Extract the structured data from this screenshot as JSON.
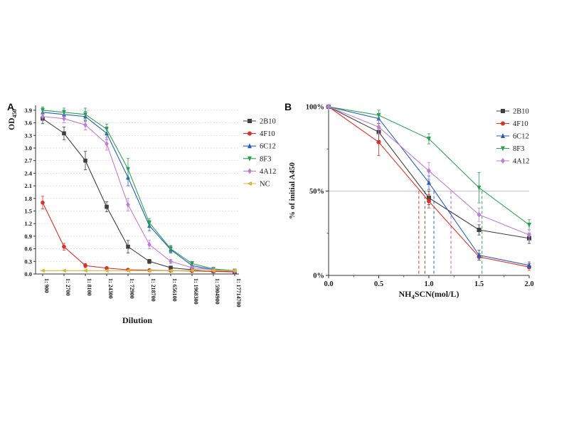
{
  "figure": {
    "panelA": {
      "label": "A"
    },
    "panelB": {
      "label": "B"
    }
  },
  "chart_data": [
    {
      "type": "line",
      "panel": "A",
      "title": "",
      "xlabel_segments": [
        {
          "t": "Dilution"
        }
      ],
      "ylabel_segments": [
        {
          "t": "OD"
        },
        {
          "t": "450",
          "sub": true
        }
      ],
      "categories": [
        "1: 900",
        "1: 2700",
        "1: 8100",
        "1: 24300",
        "1: 72900",
        "1: 218700",
        "1: 656100",
        "1: 1968300",
        "1: 5904900",
        "1: 17714700"
      ],
      "ylim": [
        0,
        4.05
      ],
      "yticks": [
        "0.0",
        "0.3",
        "0.6",
        "0.9",
        "1.2",
        "1.5",
        "1.8",
        "2.1",
        "2.4",
        "2.7",
        "3.0",
        "3.3",
        "3.6",
        "3.9"
      ],
      "grid": "dotted-horizontal",
      "legend_position": "right",
      "series": [
        {
          "name": "2B10",
          "color": "#3f3f3f",
          "marker": "square",
          "values": [
            3.7,
            3.35,
            2.7,
            1.6,
            0.65,
            0.3,
            0.15,
            0.1,
            0.07,
            0.05
          ],
          "errors": [
            0.12,
            0.15,
            0.22,
            0.12,
            0.15,
            0.05,
            0.03,
            0.02,
            0.02,
            0.02
          ]
        },
        {
          "name": "4F10",
          "color": "#d3342e",
          "marker": "circle",
          "values": [
            1.7,
            0.65,
            0.2,
            0.14,
            0.1,
            0.09,
            0.08,
            0.07,
            0.06,
            0.05
          ],
          "errors": [
            0.15,
            0.08,
            0.05,
            0.03,
            0.02,
            0.02,
            0.02,
            0.02,
            0.02,
            0.02
          ]
        },
        {
          "name": "6C12",
          "color": "#2b5bb5",
          "marker": "triangle-up",
          "values": [
            3.85,
            3.8,
            3.75,
            3.35,
            2.3,
            1.15,
            0.58,
            0.2,
            0.1,
            0.07
          ],
          "errors": [
            0.1,
            0.1,
            0.12,
            0.15,
            0.2,
            0.12,
            0.08,
            0.04,
            0.03,
            0.02
          ]
        },
        {
          "name": "8F3",
          "color": "#2f9e53",
          "marker": "triangle-down",
          "values": [
            3.9,
            3.85,
            3.8,
            3.45,
            2.5,
            1.22,
            0.6,
            0.25,
            0.12,
            0.08
          ],
          "errors": [
            0.08,
            0.1,
            0.15,
            0.12,
            0.25,
            0.1,
            0.08,
            0.05,
            0.03,
            0.02
          ]
        },
        {
          "name": "4A12",
          "color": "#bd7fd1",
          "marker": "diamond",
          "values": [
            3.75,
            3.7,
            3.55,
            3.1,
            1.65,
            0.7,
            0.3,
            0.15,
            0.1,
            0.07
          ],
          "errors": [
            0.1,
            0.1,
            0.12,
            0.15,
            0.15,
            0.1,
            0.05,
            0.03,
            0.02,
            0.02
          ]
        },
        {
          "name": "NC",
          "color": "#d4b93c",
          "marker": "triangle-left",
          "values": [
            0.08,
            0.08,
            0.08,
            0.08,
            0.08,
            0.08,
            0.08,
            0.08,
            0.08,
            0.08
          ],
          "errors": [
            0.02,
            0.02,
            0.02,
            0.02,
            0.02,
            0.02,
            0.02,
            0.02,
            0.02,
            0.02
          ]
        }
      ]
    },
    {
      "type": "line",
      "panel": "B",
      "title": "",
      "xlabel_segments": [
        {
          "t": "NH"
        },
        {
          "t": "4",
          "sub": true
        },
        {
          "t": "SCN(mol/L)"
        }
      ],
      "ylabel_segments": [
        {
          "t": "% of initial A450"
        }
      ],
      "x": [
        0.0,
        0.5,
        1.0,
        1.5,
        2.0
      ],
      "xlim": [
        0,
        2.0
      ],
      "xticks": [
        "0.0",
        "0.5",
        "1.0",
        "1.5",
        "2.0"
      ],
      "ylim": [
        0,
        100
      ],
      "ytick_values": [
        0,
        50,
        100
      ],
      "ytick_labels": [
        "0%",
        "50%",
        "100%"
      ],
      "gridline_y": 50,
      "legend_position": "top-right",
      "series": [
        {
          "name": "2B10",
          "color": "#3f3f3f",
          "marker": "square",
          "values": [
            100,
            85,
            46,
            27,
            22
          ],
          "errors": [
            0,
            5,
            4,
            3,
            3
          ]
        },
        {
          "name": "4F10",
          "color": "#d3342e",
          "marker": "circle",
          "values": [
            100,
            79,
            44,
            11,
            5
          ],
          "errors": [
            0,
            8,
            4,
            2,
            2
          ]
        },
        {
          "name": "6C12",
          "color": "#2b5bb5",
          "marker": "triangle-up",
          "values": [
            100,
            93,
            55,
            12,
            6
          ],
          "errors": [
            0,
            3,
            4,
            3,
            2
          ]
        },
        {
          "name": "8F3",
          "color": "#2f9e53",
          "marker": "triangle-down",
          "values": [
            100,
            95,
            81,
            52,
            30
          ],
          "errors": [
            0,
            3,
            3,
            9,
            3
          ]
        },
        {
          "name": "4A12",
          "color": "#bd7fd1",
          "marker": "diamond",
          "values": [
            100,
            88,
            62,
            36,
            24
          ],
          "errors": [
            0,
            4,
            5,
            4,
            3
          ]
        }
      ],
      "dashed_lines": [
        {
          "series": "4F10",
          "x": 0.9,
          "color": "#d3342e"
        },
        {
          "series": "2B10",
          "x": 0.96,
          "color": "#7a4a3a"
        },
        {
          "series": "6C12",
          "x": 1.05,
          "color": "#2b5bb5"
        },
        {
          "series": "4A12",
          "x": 1.22,
          "color": "#cc55cc"
        },
        {
          "series": "8F3",
          "x": 1.53,
          "color": "#2f9e53"
        }
      ]
    }
  ]
}
